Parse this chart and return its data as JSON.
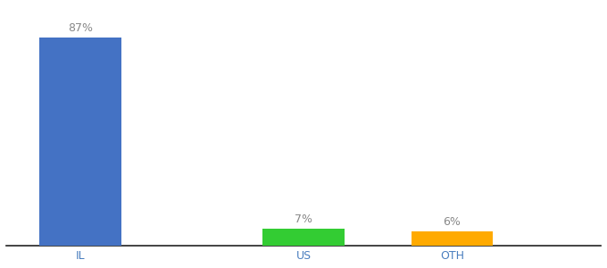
{
  "categories": [
    "IL",
    "US",
    "OTH"
  ],
  "values": [
    87,
    7,
    6
  ],
  "bar_colors": [
    "#4472c4",
    "#33cc33",
    "#ffaa00"
  ],
  "labels": [
    "87%",
    "7%",
    "6%"
  ],
  "ylabel": "",
  "xlabel": "",
  "ylim": [
    0,
    100
  ],
  "background_color": "#ffffff",
  "label_color": "#888888",
  "bar_width": 0.55,
  "label_fontsize": 9,
  "tick_fontsize": 9,
  "tick_color": "#4a7ebf",
  "xlim": [
    -0.5,
    3.5
  ]
}
